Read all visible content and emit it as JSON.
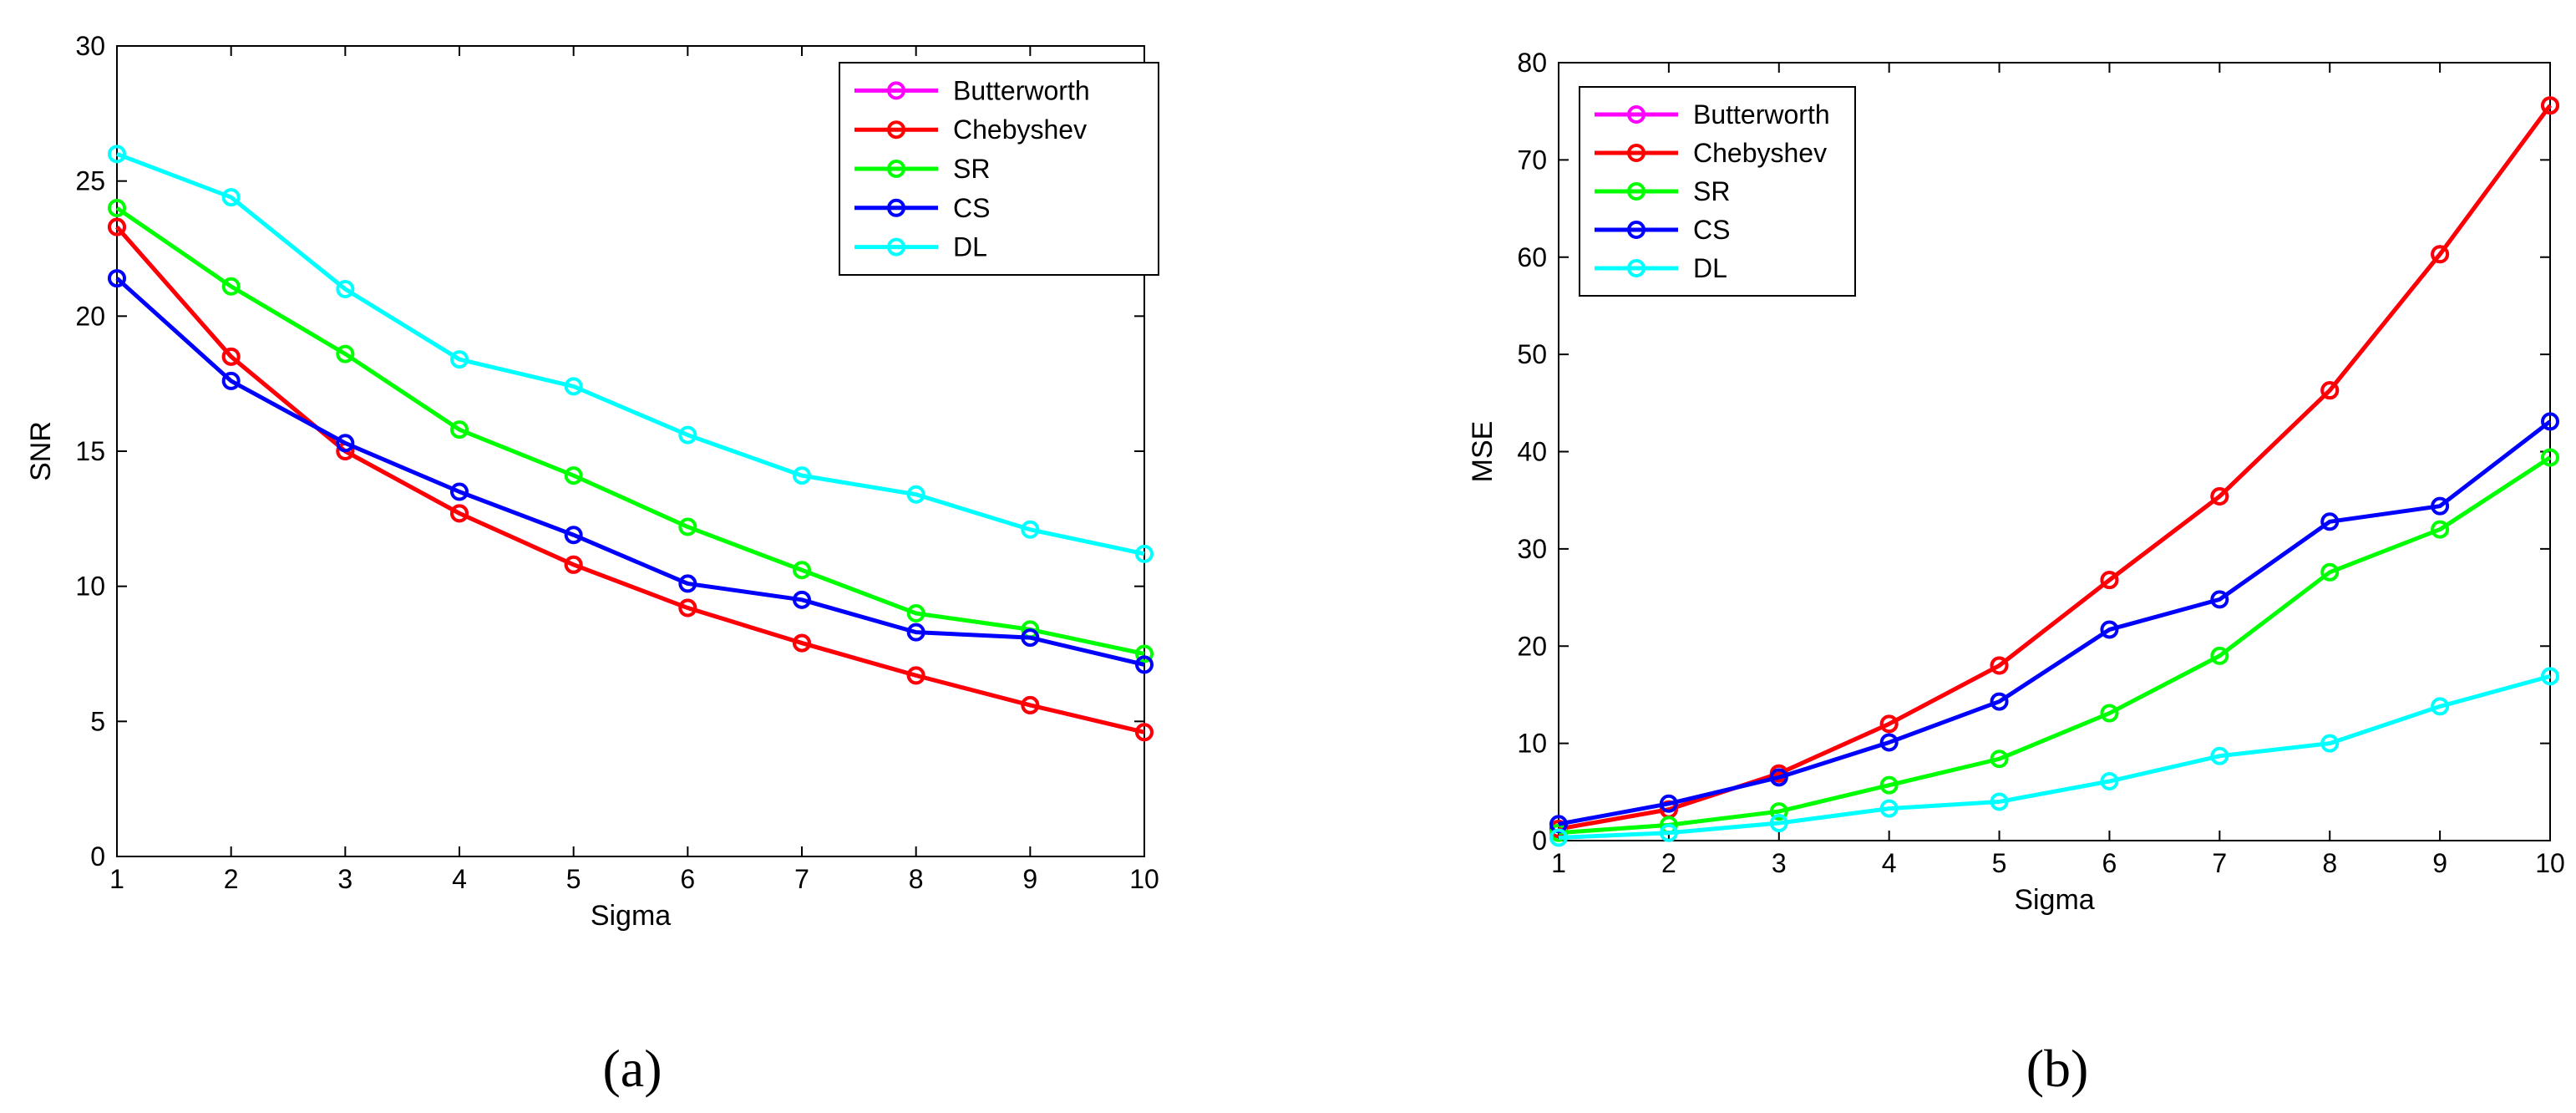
{
  "chart_data": [
    {
      "type": "line",
      "panel_label": "(a)",
      "xlabel": "Sigma",
      "ylabel": "SNR",
      "x": [
        1,
        2,
        3,
        4,
        5,
        6,
        7,
        8,
        9,
        10
      ],
      "xlim": [
        1,
        10
      ],
      "ylim": [
        0,
        30
      ],
      "xticks": [
        "1",
        "2",
        "3",
        "4",
        "5",
        "6",
        "7",
        "8",
        "9",
        "10"
      ],
      "yticks": [
        "0",
        "5",
        "10",
        "15",
        "20",
        "25",
        "30"
      ],
      "grid": false,
      "legend_position": "top-right",
      "series": [
        {
          "name": "Butterworth",
          "color": "#ff00ff",
          "values": [
            23.3,
            18.5,
            15.0,
            12.7,
            10.8,
            9.2,
            7.9,
            6.7,
            5.6,
            4.6
          ]
        },
        {
          "name": "Chebyshev",
          "color": "#ff0000",
          "values": [
            23.3,
            18.5,
            15.0,
            12.7,
            10.8,
            9.2,
            7.9,
            6.7,
            5.6,
            4.6
          ]
        },
        {
          "name": "SR",
          "color": "#00ff00",
          "values": [
            24.0,
            21.1,
            18.6,
            15.8,
            14.1,
            12.2,
            10.6,
            9.0,
            8.4,
            7.5
          ]
        },
        {
          "name": "CS",
          "color": "#0000ff",
          "values": [
            21.4,
            17.6,
            15.3,
            13.5,
            11.9,
            10.1,
            9.5,
            8.3,
            8.1,
            7.1
          ]
        },
        {
          "name": "DL",
          "color": "#00ffff",
          "values": [
            26.0,
            24.4,
            21.0,
            18.4,
            17.4,
            15.6,
            14.1,
            13.4,
            12.1,
            11.2
          ]
        }
      ]
    },
    {
      "type": "line",
      "panel_label": "(b)",
      "xlabel": "Sigma",
      "ylabel": "MSE",
      "x": [
        1,
        2,
        3,
        4,
        5,
        6,
        7,
        8,
        9,
        10
      ],
      "xlim": [
        1,
        10
      ],
      "ylim": [
        0,
        80
      ],
      "xticks": [
        "1",
        "2",
        "3",
        "4",
        "5",
        "6",
        "7",
        "8",
        "9",
        "10"
      ],
      "yticks": [
        "0",
        "10",
        "20",
        "30",
        "40",
        "50",
        "60",
        "70",
        "80"
      ],
      "grid": false,
      "legend_position": "top-left",
      "series": [
        {
          "name": "Butterworth",
          "color": "#ff00ff",
          "values": [
            1.2,
            3.2,
            6.9,
            12.0,
            18.0,
            26.8,
            35.4,
            46.3,
            60.3,
            75.6
          ]
        },
        {
          "name": "Chebyshev",
          "color": "#ff0000",
          "values": [
            1.2,
            3.2,
            6.9,
            12.0,
            18.0,
            26.8,
            35.4,
            46.3,
            60.3,
            75.6
          ]
        },
        {
          "name": "SR",
          "color": "#00ff00",
          "values": [
            0.8,
            1.6,
            3.0,
            5.7,
            8.4,
            13.1,
            19.0,
            27.6,
            32.0,
            39.4
          ]
        },
        {
          "name": "CS",
          "color": "#0000ff",
          "values": [
            1.7,
            3.8,
            6.5,
            10.1,
            14.3,
            21.7,
            24.8,
            32.8,
            34.4,
            43.1
          ]
        },
        {
          "name": "DL",
          "color": "#00ffff",
          "values": [
            0.3,
            0.8,
            1.8,
            3.3,
            4.0,
            6.1,
            8.7,
            10.0,
            13.8,
            16.9
          ]
        }
      ]
    }
  ]
}
